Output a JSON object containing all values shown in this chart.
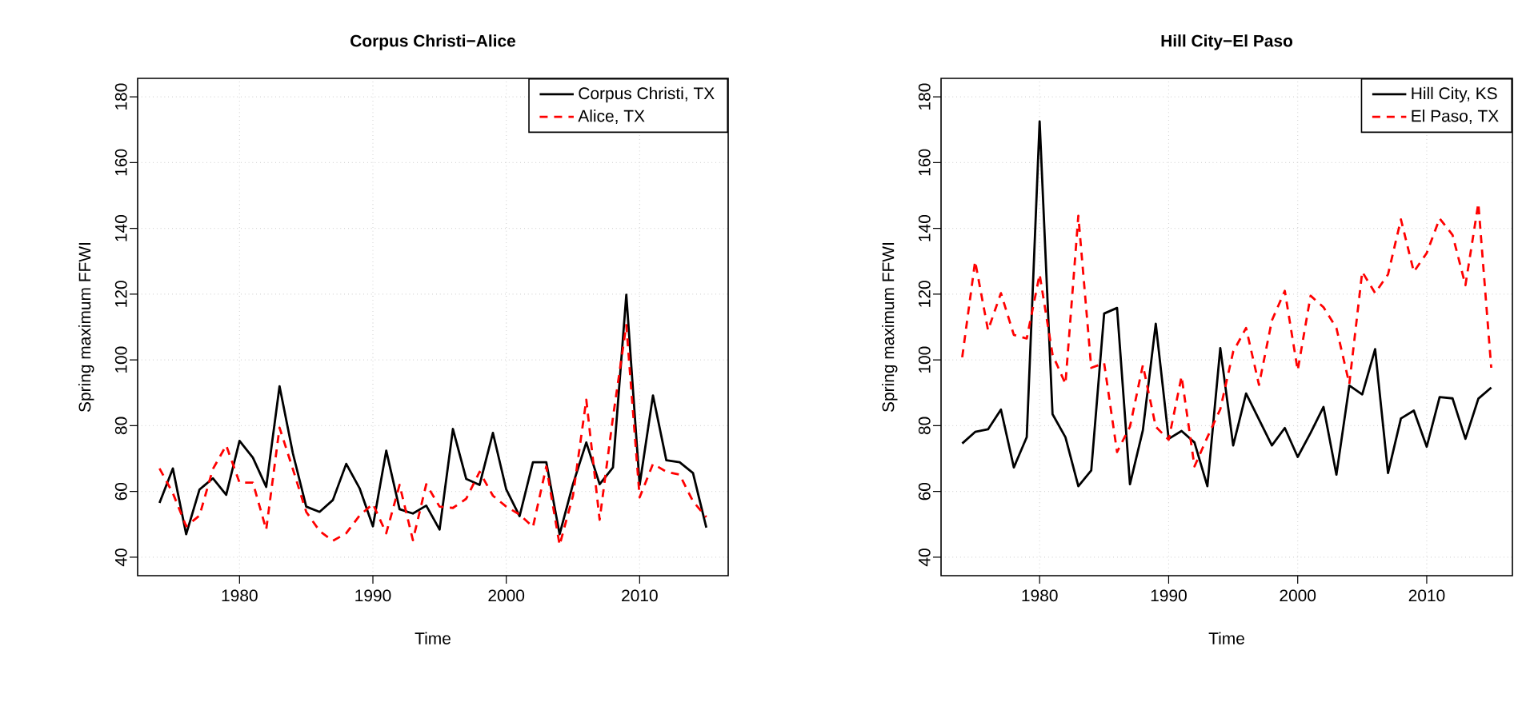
{
  "chart_data": [
    {
      "type": "line",
      "title": "Corpus Christi−Alice",
      "xlabel": "Time",
      "ylabel": "Spring maximum FFWI",
      "x": [
        1974,
        1975,
        1976,
        1977,
        1978,
        1979,
        1980,
        1981,
        1982,
        1983,
        1984,
        1985,
        1986,
        1987,
        1988,
        1989,
        1990,
        1991,
        1992,
        1993,
        1994,
        1995,
        1996,
        1997,
        1998,
        1999,
        2000,
        2001,
        2002,
        2003,
        2004,
        2005,
        2006,
        2007,
        2008,
        2009,
        2010,
        2011,
        2012,
        2013,
        2014,
        2015
      ],
      "series": [
        {
          "name": "Corpus Christi, TX",
          "color": "#000000",
          "line_style": "solid",
          "values": [
            56.5,
            67,
            47,
            60.6,
            64,
            59,
            75.4,
            70.3,
            61.4,
            92,
            71.6,
            55.4,
            53.8,
            57.4,
            68.4,
            61,
            49.4,
            72.4,
            54.6,
            53.3,
            55.7,
            48.4,
            79,
            63.8,
            62,
            77.8,
            60.6,
            52.5,
            68.9,
            68.9,
            47,
            62.2,
            74.9,
            62.2,
            67.3,
            119.8,
            62,
            89.2,
            69.5,
            68.9,
            65.6,
            49
          ]
        },
        {
          "name": "Alice, TX",
          "color": "#ff0000",
          "line_style": "dashed",
          "values": [
            67,
            59.5,
            49.4,
            52.7,
            66.8,
            74,
            62.7,
            62.7,
            48.4,
            79.4,
            66.8,
            53.8,
            48,
            45,
            47.3,
            52.7,
            56.2,
            47.3,
            62,
            45.2,
            62.2,
            55.4,
            55,
            57.8,
            66,
            58.7,
            55.4,
            53,
            49.2,
            67.6,
            43.7,
            58.7,
            87.9,
            51.4,
            82.5,
            110.6,
            58.2,
            68.4,
            66,
            65.1,
            57,
            52.2
          ]
        }
      ],
      "xlim": [
        1972.36,
        2016.64
      ],
      "ylim": [
        34.4,
        185.6
      ],
      "xticks": [
        1980,
        1990,
        2000,
        2010
      ],
      "yticks": [
        40,
        60,
        80,
        100,
        120,
        140,
        160,
        180
      ],
      "grid": true,
      "legend": "top right"
    },
    {
      "type": "line",
      "title": "Hill City−El Paso",
      "xlabel": "Time",
      "ylabel": "Spring maximum FFWI",
      "x": [
        1974,
        1975,
        1976,
        1977,
        1978,
        1979,
        1980,
        1981,
        1982,
        1983,
        1984,
        1985,
        1986,
        1987,
        1988,
        1989,
        1990,
        1991,
        1992,
        1993,
        1994,
        1995,
        1996,
        1997,
        1998,
        1999,
        2000,
        2001,
        2002,
        2003,
        2004,
        2005,
        2006,
        2007,
        2008,
        2009,
        2010,
        2011,
        2012,
        2013,
        2014,
        2015
      ],
      "series": [
        {
          "name": "Hill City, KS",
          "color": "#000000",
          "line_style": "solid",
          "values": [
            74.6,
            78.1,
            78.9,
            84.9,
            67.3,
            76.5,
            172.5,
            83.5,
            76.5,
            61.6,
            66.4,
            114.1,
            115.8,
            62.2,
            78.6,
            111,
            76,
            78.4,
            74.9,
            61.6,
            103.6,
            74,
            89.8,
            81.9,
            74,
            79.3,
            70.5,
            77.8,
            85.7,
            65.1,
            92.2,
            89.5,
            103.3,
            65.6,
            82.2,
            84.6,
            73.6,
            88.7,
            88.3,
            76,
            88.2,
            91.6
          ]
        },
        {
          "name": "El Paso, TX",
          "color": "#ff0000",
          "line_style": "dashed",
          "values": [
            100.8,
            130,
            109,
            120.3,
            107.6,
            106.5,
            126,
            101.6,
            92.7,
            143.8,
            97.6,
            99,
            72,
            79.7,
            98.4,
            79.7,
            75.7,
            95,
            67.6,
            76.5,
            85,
            102.5,
            109.7,
            92.4,
            112,
            121,
            96.8,
            119.5,
            116,
            109.7,
            92.7,
            126.8,
            120.3,
            126,
            142.7,
            126.8,
            132.5,
            143,
            138,
            122.7,
            147.6,
            97.6
          ]
        }
      ],
      "xlim": [
        1972.36,
        2016.64
      ],
      "ylim": [
        34.4,
        185.6
      ],
      "xticks": [
        1980,
        1990,
        2000,
        2010
      ],
      "yticks": [
        40,
        60,
        80,
        100,
        120,
        140,
        160,
        180
      ],
      "grid": true,
      "legend": "top right"
    }
  ]
}
